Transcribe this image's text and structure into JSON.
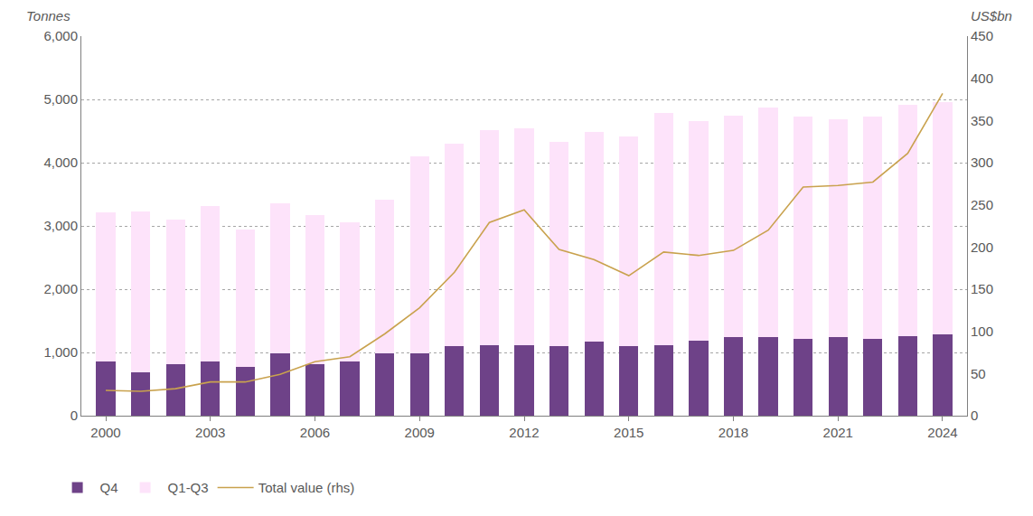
{
  "chart_data": {
    "type": "bar",
    "stacked": true,
    "grid": true,
    "legend": "bottom left",
    "ylabel": "Tonnes",
    "y2label": "US$bn",
    "x": [
      2000,
      2001,
      2002,
      2003,
      2004,
      2005,
      2006,
      2007,
      2008,
      2009,
      2010,
      2011,
      2012,
      2013,
      2014,
      2015,
      2016,
      2017,
      2018,
      2019,
      2020,
      2021,
      2022,
      2023,
      2024
    ],
    "xlim": [
      1999.3,
      2024.7
    ],
    "xticks": [
      2000,
      2003,
      2006,
      2009,
      2012,
      2015,
      2018,
      2021,
      2024
    ],
    "ylim": [
      0,
      6000
    ],
    "yticks": [
      0,
      {
        "value": 1000,
        "label": "1,000"
      },
      {
        "value": 2000,
        "label": "2,000"
      },
      {
        "value": 3000,
        "label": "3,000"
      },
      {
        "value": 4000,
        "label": "4,000"
      },
      {
        "value": 5000,
        "label": "5,000"
      },
      {
        "value": 6000,
        "label": "6,000"
      }
    ],
    "y2lim": [
      0,
      450
    ],
    "y2ticks": [
      0,
      50,
      100,
      150,
      200,
      250,
      300,
      350,
      400,
      450
    ],
    "series": [
      {
        "name": "Q4",
        "type": "bar",
        "color": "#6e4288",
        "values": [
          860,
          680,
          820,
          860,
          770,
          980,
          820,
          860,
          980,
          980,
          1100,
          1120,
          1120,
          1100,
          1170,
          1100,
          1120,
          1190,
          1240,
          1240,
          1220,
          1240,
          1220,
          1260,
          1290
        ]
      },
      {
        "name": "Q1-Q3",
        "type": "bar",
        "color": "#fde3fa",
        "values": [
          2360,
          2550,
          2280,
          2450,
          2170,
          2380,
          2350,
          2200,
          2430,
          3120,
          3200,
          3400,
          3420,
          3230,
          3320,
          3320,
          3660,
          3470,
          3510,
          3630,
          3510,
          3440,
          3510,
          3660,
          3670
        ]
      },
      {
        "name": "Total value (rhs)",
        "type": "line",
        "axis": "y2",
        "color": "#c9a24e",
        "line_style": "solid",
        "values": [
          30,
          29,
          32,
          40,
          40,
          49,
          64,
          70,
          97,
          128,
          170,
          229,
          244,
          197,
          185,
          166,
          194,
          190,
          196,
          220,
          271,
          273,
          277,
          311,
          382
        ]
      }
    ]
  }
}
